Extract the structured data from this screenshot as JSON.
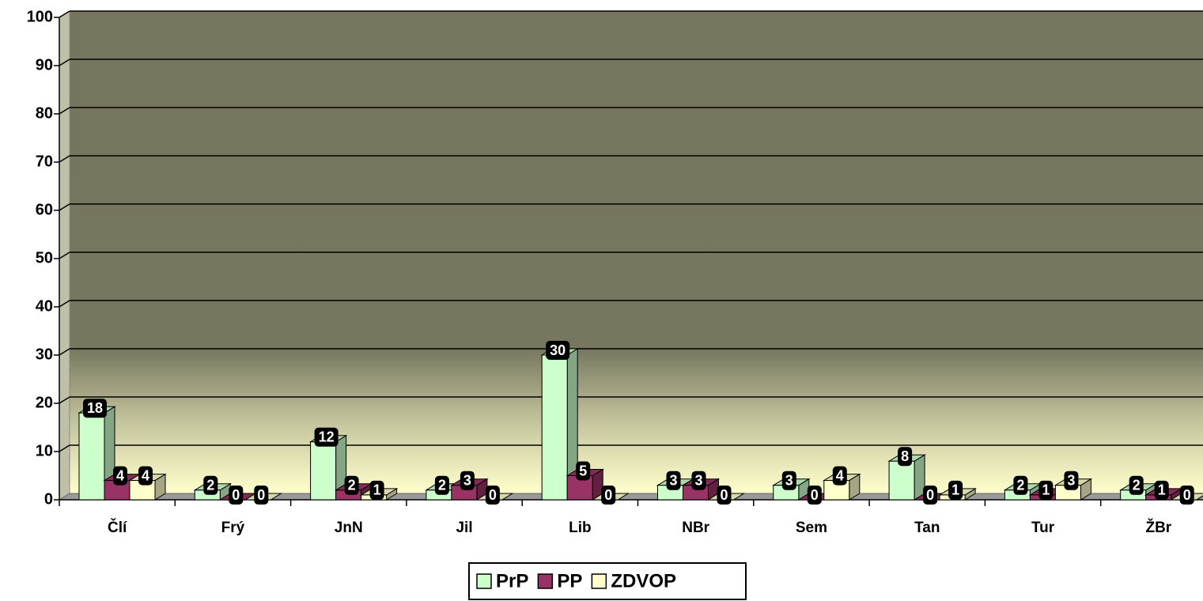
{
  "chart_data": {
    "type": "bar3d",
    "categories": [
      "Člí",
      "Frý",
      "JnN",
      "Jil",
      "Lib",
      "NBr",
      "Sem",
      "Tan",
      "Tur",
      "ŽBr"
    ],
    "series": [
      {
        "name": "PrP",
        "color": "#ccffcc",
        "values": [
          18,
          2,
          12,
          2,
          30,
          3,
          3,
          8,
          2,
          2
        ]
      },
      {
        "name": "PP",
        "color": "#993366",
        "values": [
          4,
          0,
          2,
          3,
          5,
          3,
          0,
          0,
          1,
          1
        ]
      },
      {
        "name": "ZDVOP",
        "color": "#ffffcc",
        "values": [
          4,
          0,
          1,
          0,
          0,
          0,
          4,
          1,
          3,
          0
        ]
      }
    ],
    "ylim": [
      0,
      100
    ],
    "yticks": [
      0,
      10,
      20,
      30,
      40,
      50,
      60,
      70,
      80,
      90,
      100
    ],
    "grid": true,
    "legend": "bottom"
  }
}
